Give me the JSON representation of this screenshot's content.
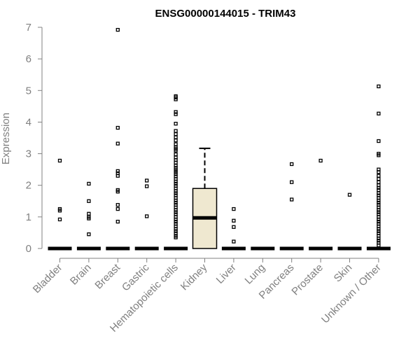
{
  "chart_data": {
    "type": "boxplot",
    "title": "ENSG00000144015 - TRIM43",
    "xlabel": "",
    "ylabel": "Expression",
    "ylim": [
      0,
      7
    ],
    "yticks": [
      0,
      1,
      2,
      3,
      4,
      5,
      6,
      7
    ],
    "grid": false,
    "legend": "none",
    "colors": {
      "box_fill": "#efe8d0",
      "axis": "#808080",
      "ink": "#000000"
    },
    "categories": [
      "Bladder",
      "Brain",
      "Breast",
      "Gastric",
      "Hematopoietic cells",
      "Kidney",
      "Liver",
      "Lung",
      "Pancreas",
      "Prostate",
      "Skin",
      "Unknown / Other"
    ],
    "boxes": [
      {
        "category": "Bladder",
        "min": 0,
        "q1": 0,
        "median": 0,
        "q3": 0,
        "max": 0,
        "outliers": [
          2.78,
          1.25,
          1.2,
          0.92
        ]
      },
      {
        "category": "Brain",
        "min": 0,
        "q1": 0,
        "median": 0,
        "q3": 0,
        "max": 0,
        "outliers": [
          2.05,
          1.5,
          1.1,
          1.0,
          0.95,
          0.45
        ]
      },
      {
        "category": "Breast",
        "min": 0,
        "q1": 0,
        "median": 0,
        "q3": 0,
        "max": 0,
        "outliers": [
          6.92,
          3.82,
          3.32,
          2.45,
          2.38,
          2.3,
          1.85,
          1.8,
          1.38,
          1.25,
          0.85
        ]
      },
      {
        "category": "Gastric",
        "min": 0,
        "q1": 0,
        "median": 0,
        "q3": 0,
        "max": 0,
        "outliers": [
          2.15,
          1.97,
          1.02
        ]
      },
      {
        "category": "Hematopoietic cells",
        "min": 0,
        "q1": 0,
        "median": 0,
        "q3": 0,
        "max": 0,
        "outliers": [
          4.82,
          4.78,
          4.72,
          4.32,
          4.25,
          3.95,
          3.72,
          3.62,
          3.52,
          3.42,
          3.3,
          3.2,
          3.15,
          3.1,
          2.98,
          2.88,
          2.8,
          2.72,
          2.62,
          2.55,
          2.48,
          2.42,
          2.35,
          2.28,
          2.2,
          2.12,
          2.05,
          1.98,
          1.9,
          1.82,
          1.75,
          1.68,
          1.6,
          1.52,
          1.45,
          1.38,
          1.3,
          1.22,
          1.15,
          1.08,
          1.0,
          0.92,
          0.85,
          0.78,
          0.7,
          0.62,
          0.55,
          0.48,
          0.4,
          0.35
        ]
      },
      {
        "category": "Kidney",
        "min": 0,
        "q1": 0,
        "median": 0.97,
        "q3": 1.9,
        "max": 3.17,
        "outliers": []
      },
      {
        "category": "Liver",
        "min": 0,
        "q1": 0,
        "median": 0,
        "q3": 0,
        "max": 0,
        "outliers": [
          1.25,
          0.88,
          0.68,
          0.22
        ]
      },
      {
        "category": "Lung",
        "min": 0,
        "q1": 0,
        "median": 0,
        "q3": 0,
        "max": 0,
        "outliers": []
      },
      {
        "category": "Pancreas",
        "min": 0,
        "q1": 0,
        "median": 0,
        "q3": 0,
        "max": 0,
        "outliers": [
          2.67,
          2.1,
          1.55
        ]
      },
      {
        "category": "Prostate",
        "min": 0,
        "q1": 0,
        "median": 0,
        "q3": 0,
        "max": 0,
        "outliers": [
          2.78
        ]
      },
      {
        "category": "Skin",
        "min": 0,
        "q1": 0,
        "median": 0,
        "q3": 0,
        "max": 0,
        "outliers": [
          1.7
        ]
      },
      {
        "category": "Unknown / Other",
        "min": 0,
        "q1": 0,
        "median": 0,
        "q3": 0,
        "max": 0,
        "outliers": [
          5.13,
          4.27,
          3.4,
          3.0,
          2.95,
          2.5,
          2.42,
          2.3,
          2.2,
          2.1,
          2.0,
          1.92,
          1.85,
          1.75,
          1.68,
          1.6,
          1.52,
          1.45,
          1.38,
          1.3,
          1.22,
          1.15,
          1.08,
          1.0,
          0.92,
          0.85,
          0.78,
          0.7,
          0.62,
          0.55,
          0.48,
          0.4,
          0.32,
          0.25,
          0.18,
          0.1
        ]
      }
    ]
  }
}
